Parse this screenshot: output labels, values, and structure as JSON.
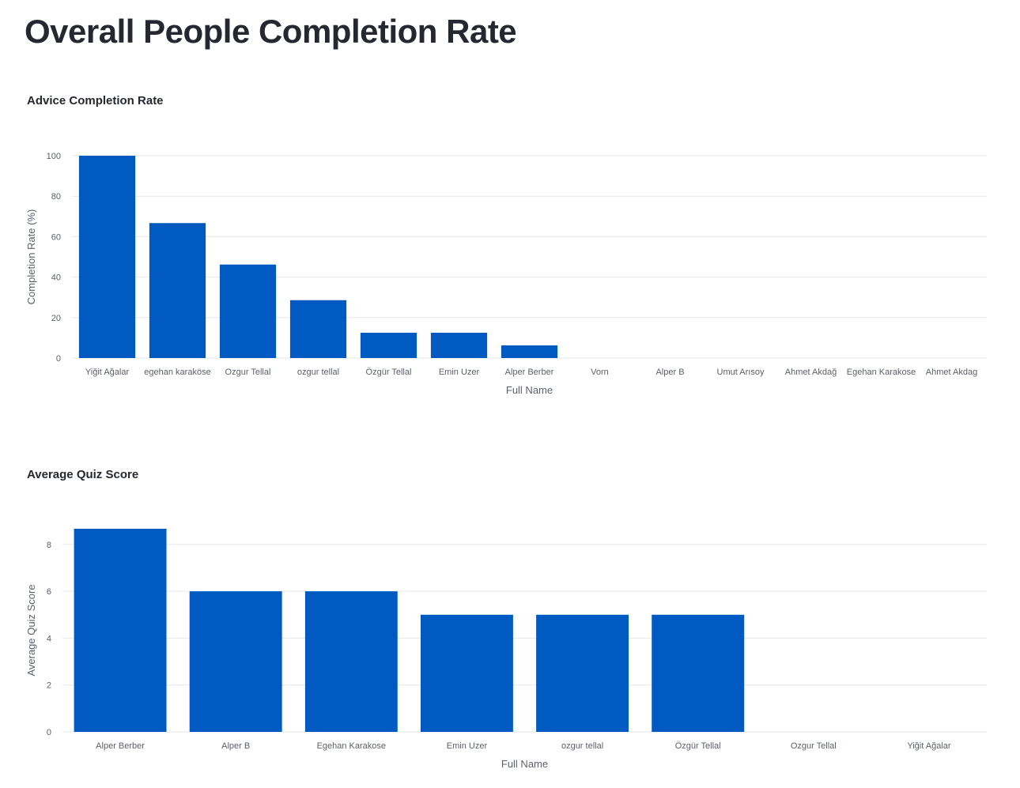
{
  "page": {
    "title": "Overall People Completion Rate"
  },
  "colors": {
    "bar": "#0159c2",
    "text": "#262730",
    "axis_text": "#5b5f6a",
    "grid": "#e6e7ea"
  },
  "chart_data": [
    {
      "type": "bar",
      "title": "Advice Completion Rate",
      "xlabel": "Full Name",
      "ylabel": "Completion Rate (%)",
      "categories": [
        "Yiğit Ağalar",
        "egehan karaköse",
        "Ozgur Tellal",
        "ozgur tellal",
        "Özgür Tellal",
        "Emin Uzer",
        "Alper Berber",
        "Vorn",
        "Alper B",
        "Umut Arısoy",
        "Ahmet Akdağ",
        "Egehan Karakose",
        "Ahmet Akdag"
      ],
      "values": [
        100,
        66.7,
        46.2,
        28.6,
        12.5,
        12.5,
        6.25,
        0,
        0,
        0,
        0,
        0,
        0
      ],
      "ylim": [
        0,
        100
      ],
      "yticks": [
        0,
        20,
        40,
        60,
        80,
        100
      ],
      "grid": true
    },
    {
      "type": "bar",
      "title": "Average Quiz Score",
      "xlabel": "Full Name",
      "ylabel": "Average Quiz Score",
      "categories": [
        "Alper Berber",
        "Alper B",
        "Egehan Karakose",
        "Emin Uzer",
        "ozgur tellal",
        "Özgür Tellal",
        "Ozgur Tellal",
        "Yiğit Ağalar"
      ],
      "values": [
        8.67,
        6,
        6,
        5,
        5,
        5,
        0,
        0
      ],
      "ylim": [
        0,
        8.67
      ],
      "yticks": [
        0,
        2,
        4,
        6,
        8
      ],
      "grid": true
    }
  ]
}
